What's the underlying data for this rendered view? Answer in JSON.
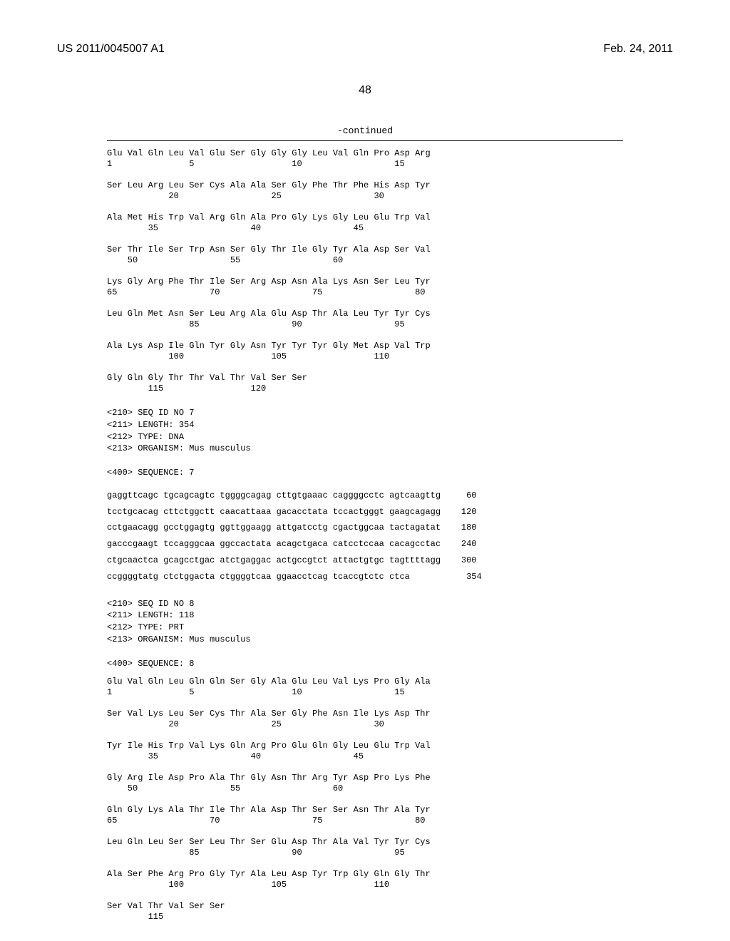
{
  "header": {
    "pub_number": "US 2011/0045007 A1",
    "pub_date": "Feb. 24, 2011",
    "page_number": "48"
  },
  "continued_label": "-continued",
  "protein1": {
    "lines": [
      "Glu Val Gln Leu Val Glu Ser Gly Gly Gly Leu Val Gln Pro Asp Arg",
      "1               5                   10                  15",
      "",
      "Ser Leu Arg Leu Ser Cys Ala Ala Ser Gly Phe Thr Phe His Asp Tyr",
      "            20                  25                  30",
      "",
      "Ala Met His Trp Val Arg Gln Ala Pro Gly Lys Gly Leu Glu Trp Val",
      "        35                  40                  45",
      "",
      "Ser Thr Ile Ser Trp Asn Ser Gly Thr Ile Gly Tyr Ala Asp Ser Val",
      "    50                  55                  60",
      "",
      "Lys Gly Arg Phe Thr Ile Ser Arg Asp Asn Ala Lys Asn Ser Leu Tyr",
      "65                  70                  75                  80",
      "",
      "Leu Gln Met Asn Ser Leu Arg Ala Glu Asp Thr Ala Leu Tyr Tyr Cys",
      "                85                  90                  95",
      "",
      "Ala Lys Asp Ile Gln Tyr Gly Asn Tyr Tyr Tyr Gly Met Asp Val Trp",
      "            100                 105                 110",
      "",
      "Gly Gln Gly Thr Thr Val Thr Val Ser Ser",
      "        115                 120"
    ]
  },
  "meta7": {
    "lines": [
      "<210> SEQ ID NO 7",
      "<211> LENGTH: 354",
      "<212> TYPE: DNA",
      "<213> ORGANISM: Mus musculus",
      "",
      "<400> SEQUENCE: 7"
    ]
  },
  "dna7": {
    "lines": [
      "gaggttcagc tgcagcagtc tggggcagag cttgtgaaac caggggcctc agtcaagttg     60",
      "tcctgcacag cttctggctt caacattaaa gacacctata tccactgggt gaagcagagg    120",
      "cctgaacagg gcctggagtg ggttggaagg attgatcctg cgactggcaa tactagatat    180",
      "gacccgaagt tccagggcaa ggccactata acagctgaca catcctccaa cacagcctac    240",
      "ctgcaactca gcagcctgac atctgaggac actgccgtct attactgtgc tagttttagg    300",
      "ccggggtatg ctctggacta ctggggtcaa ggaacctcag tcaccgtctc ctca           354"
    ]
  },
  "meta8": {
    "lines": [
      "<210> SEQ ID NO 8",
      "<211> LENGTH: 118",
      "<212> TYPE: PRT",
      "<213> ORGANISM: Mus musculus",
      "",
      "<400> SEQUENCE: 8"
    ]
  },
  "protein8": {
    "lines": [
      "Glu Val Gln Leu Gln Gln Ser Gly Ala Glu Leu Val Lys Pro Gly Ala",
      "1               5                   10                  15",
      "",
      "Ser Val Lys Leu Ser Cys Thr Ala Ser Gly Phe Asn Ile Lys Asp Thr",
      "            20                  25                  30",
      "",
      "Tyr Ile His Trp Val Lys Gln Arg Pro Glu Gln Gly Leu Glu Trp Val",
      "        35                  40                  45",
      "",
      "Gly Arg Ile Asp Pro Ala Thr Gly Asn Thr Arg Tyr Asp Pro Lys Phe",
      "    50                  55                  60",
      "",
      "Gln Gly Lys Ala Thr Ile Thr Ala Asp Thr Ser Ser Asn Thr Ala Tyr",
      "65                  70                  75                  80",
      "",
      "Leu Gln Leu Ser Ser Leu Thr Ser Glu Asp Thr Ala Val Tyr Tyr Cys",
      "                85                  90                  95",
      "",
      "Ala Ser Phe Arg Pro Gly Tyr Ala Leu Asp Tyr Trp Gly Gln Gly Thr",
      "            100                 105                 110",
      "",
      "Ser Val Thr Val Ser Ser",
      "        115"
    ]
  },
  "style": {
    "font_mono": "Courier New",
    "font_sans": "Arial",
    "bg": "#ffffff",
    "fg": "#000000",
    "header_fontsize": 16,
    "seq_fontsize": 12,
    "continued_fontsize": 13
  }
}
